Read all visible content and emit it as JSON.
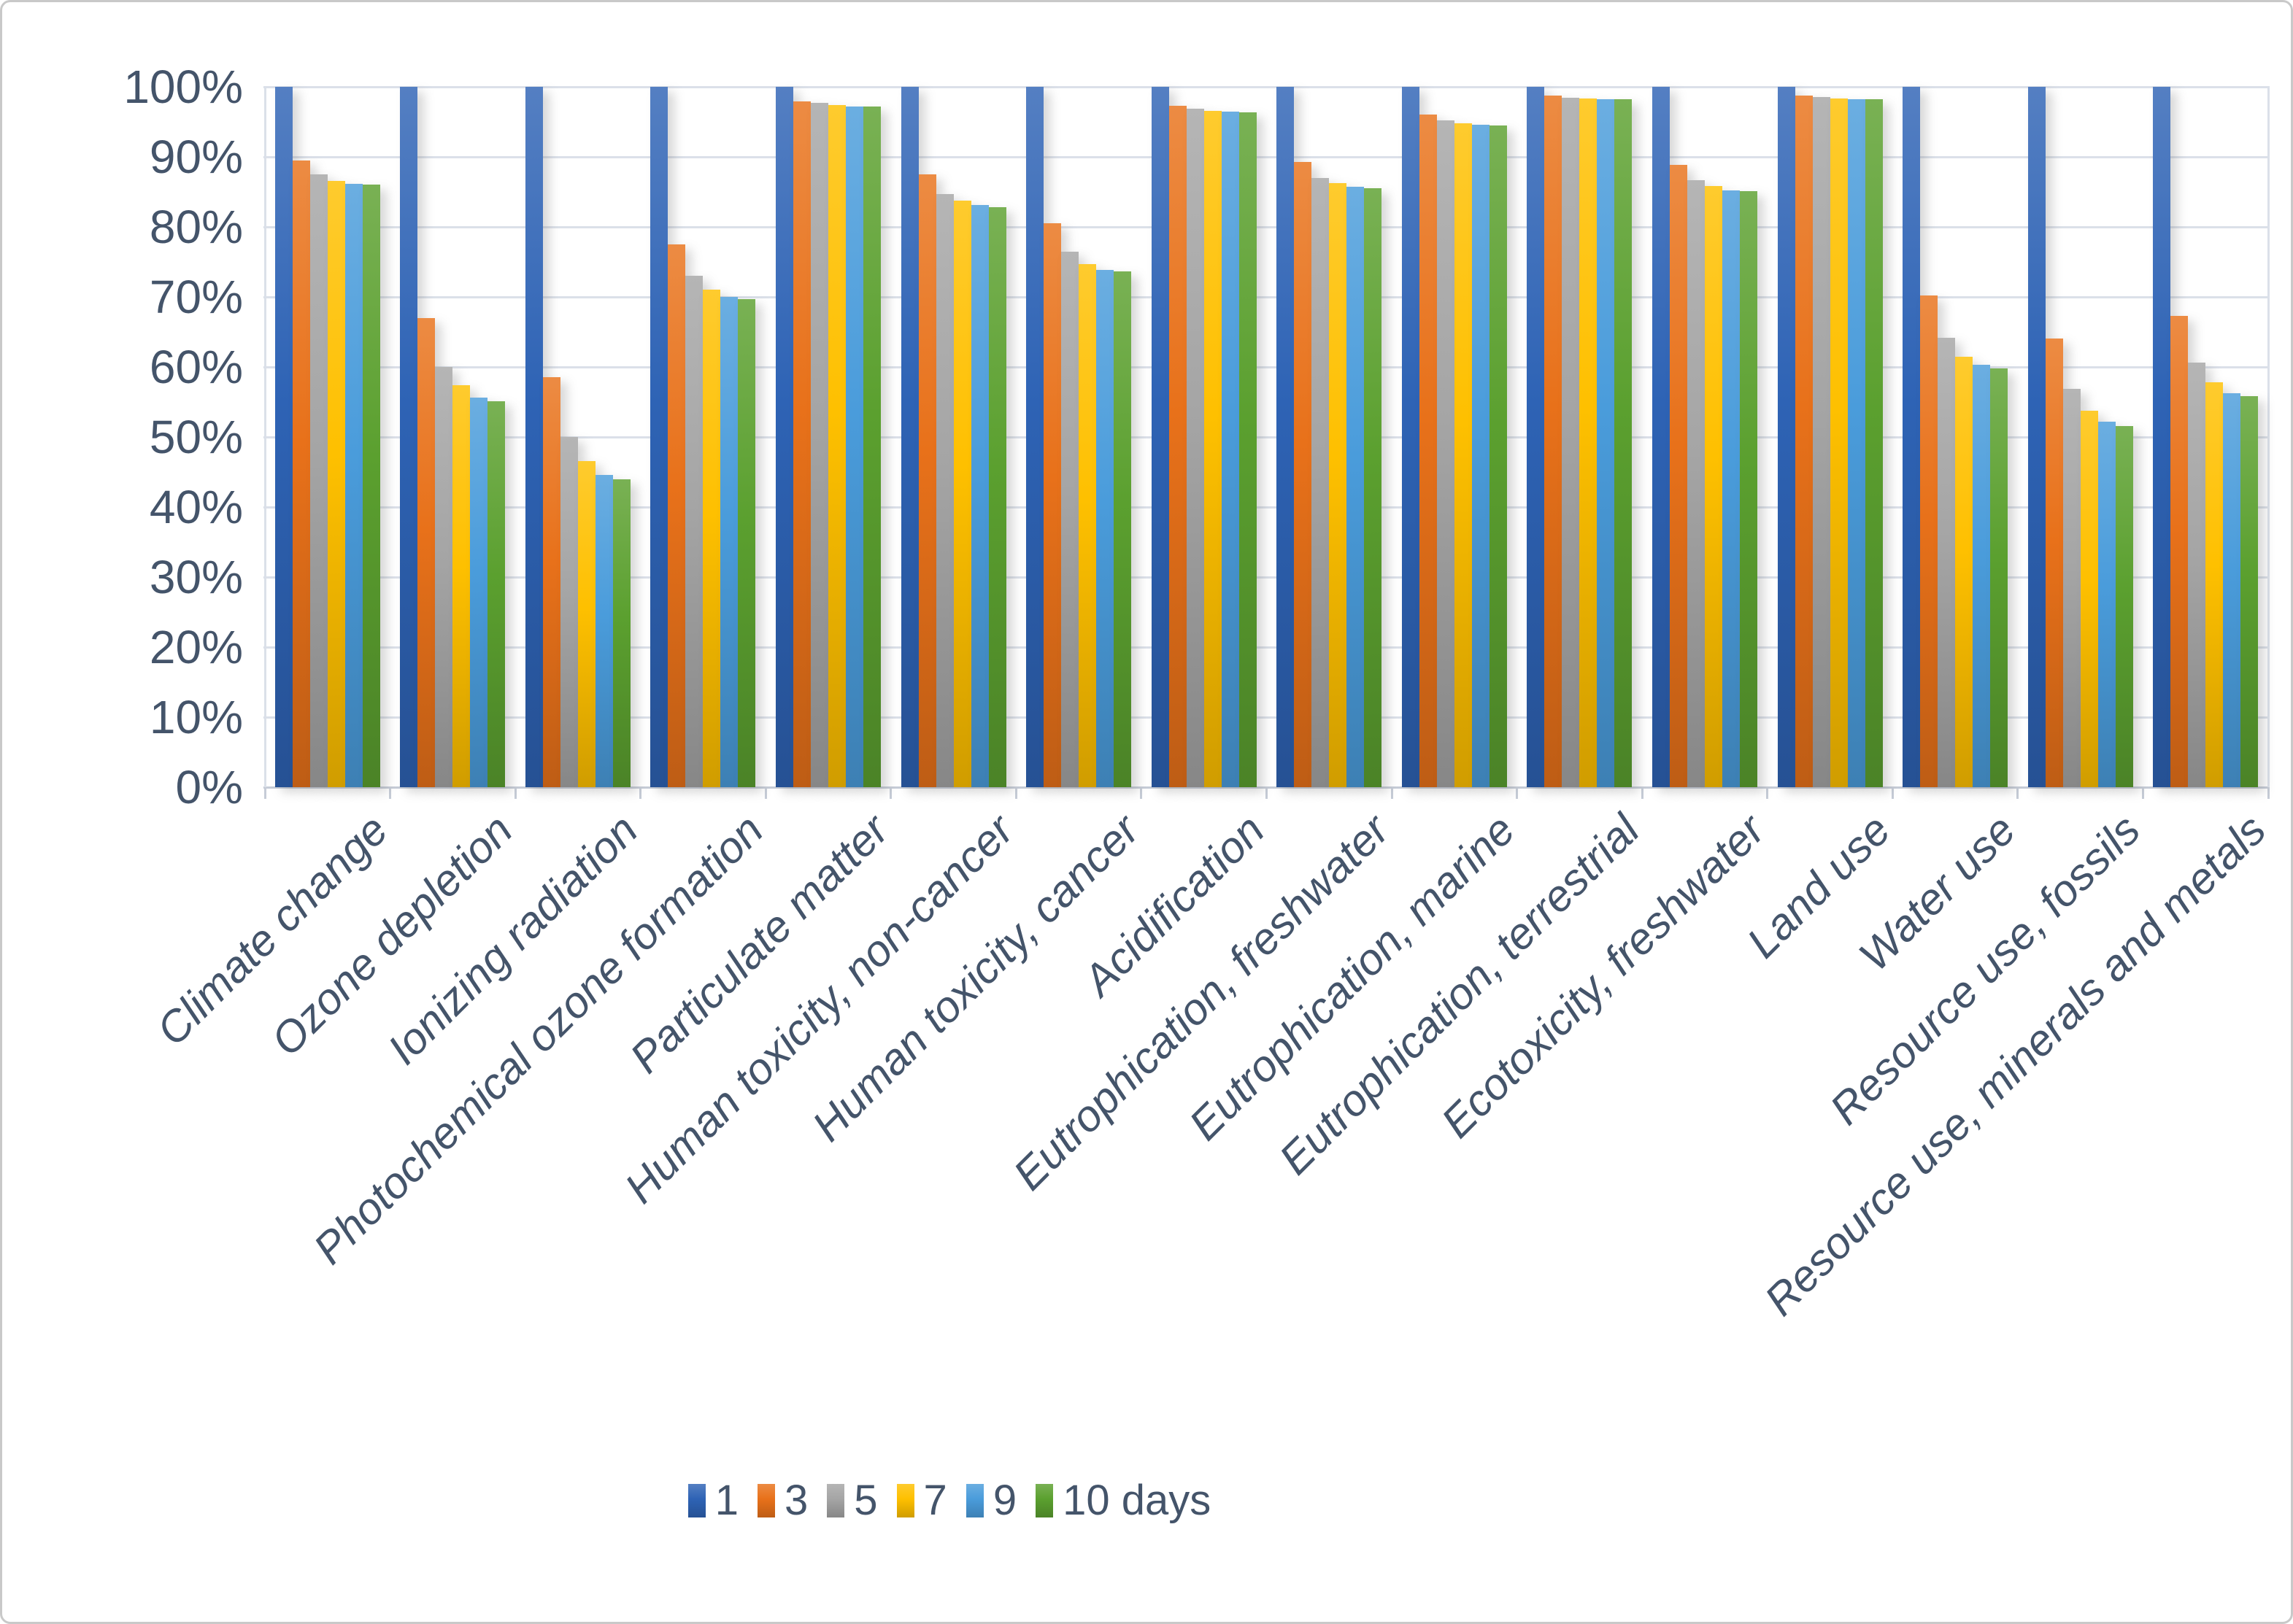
{
  "figure": {
    "background": "#ffffff",
    "border_color": "#c9c9c9",
    "text_color": "#44546a",
    "gridline_color": "#dbe0e9"
  },
  "chart_data": {
    "type": "bar",
    "title": "",
    "xlabel": "",
    "ylabel": "",
    "grid": true,
    "legend_position": "bottom",
    "y_axis": {
      "min": 0,
      "max": 100,
      "step": 10,
      "unit": "%",
      "tick_labels": [
        "0%",
        "10%",
        "20%",
        "30%",
        "40%",
        "50%",
        "60%",
        "70%",
        "80%",
        "90%",
        "100%"
      ]
    },
    "categories": [
      "Climate change",
      "Ozone depletion",
      "Ionizing radiation",
      "Photochemical ozone formation",
      "Particulate matter",
      "Human toxicity, non-cancer",
      "Human toxicity, cancer",
      "Acidification",
      "Eutrophication, freshwater",
      "Eutrophication, marine",
      "Eutrophication, terrestrial",
      "Ecotoxicity, freshwater",
      "Land use",
      "Water use",
      "Resource use, fossils",
      "Resource use, minerals and metals"
    ],
    "series": [
      {
        "name": "1",
        "color": "#2e63b5",
        "values": [
          100,
          100,
          100,
          100,
          100,
          100,
          100,
          100,
          100,
          100,
          100,
          100,
          100,
          100,
          100,
          100
        ]
      },
      {
        "name": "3",
        "color": "#e8711a",
        "values": [
          89.5,
          67.0,
          58.5,
          77.5,
          97.9,
          87.5,
          80.5,
          97.3,
          89.3,
          96.0,
          98.7,
          88.9,
          98.7,
          70.2,
          64.1,
          67.3
        ]
      },
      {
        "name": "5",
        "color": "#a5a5a5",
        "values": [
          87.5,
          60.0,
          50.0,
          73.0,
          97.7,
          84.7,
          76.5,
          96.9,
          87.0,
          95.2,
          98.4,
          86.7,
          98.5,
          64.2,
          56.9,
          60.6
        ]
      },
      {
        "name": "7",
        "color": "#fec000",
        "values": [
          86.6,
          57.4,
          46.6,
          71.0,
          97.4,
          83.7,
          74.7,
          96.6,
          86.3,
          94.8,
          98.3,
          85.8,
          98.3,
          61.5,
          53.8,
          57.8
        ]
      },
      {
        "name": "9",
        "color": "#4a9cdb",
        "values": [
          86.1,
          55.6,
          44.6,
          70.0,
          97.2,
          83.1,
          73.9,
          96.5,
          85.7,
          94.6,
          98.2,
          85.2,
          98.2,
          60.3,
          52.2,
          56.3
        ]
      },
      {
        "name": "10 days",
        "color": "#5ba02f",
        "values": [
          86.0,
          55.1,
          44.0,
          69.7,
          97.2,
          82.8,
          73.6,
          96.4,
          85.5,
          94.5,
          98.2,
          85.1,
          98.2,
          59.8,
          51.6,
          55.8
        ]
      }
    ]
  }
}
